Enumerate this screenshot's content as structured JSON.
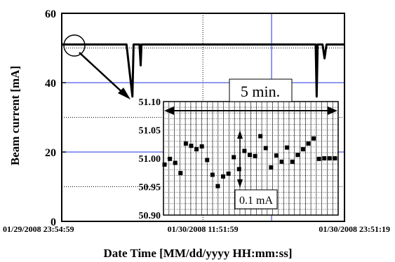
{
  "chart_data": [
    {
      "type": "line",
      "title": "",
      "xlabel": "Date Time [MM/dd/yyyy HH:mm:ss]",
      "ylabel": "Beam current [mA]",
      "ylim": [
        0,
        60
      ],
      "yticks": [
        0,
        20,
        40,
        60
      ],
      "xlim": [
        "01/29/2008 23:54:59",
        "01/30/2008 23:51:19"
      ],
      "xticks": [
        "01/29/2008 23:54:59",
        "01/30/2008 11:51:59",
        "01/30/2008 23:51:19"
      ],
      "grid": true,
      "series": [
        {
          "x": [
            "01/29/2008 23:54:59",
            "01/30/2008 05:24:00",
            "01/30/2008 05:54:00",
            "01/30/2008 06:00:00",
            "01/30/2008 06:05:00",
            "01/30/2008 06:30:00",
            "01/30/2008 06:36:00",
            "01/30/2008 06:40:00",
            "01/30/2008 20:55:00",
            "01/30/2008 21:25:00",
            "01/30/2008 21:30:00",
            "01/30/2008 21:35:00",
            "01/30/2008 22:00:00",
            "01/30/2008 22:10:00",
            "01/30/2008 22:20:00",
            "01/30/2008 23:51:19"
          ],
          "y": [
            51,
            51,
            36,
            51,
            51,
            51,
            45,
            51,
            51,
            51,
            36,
            51,
            51,
            47,
            51,
            51
          ]
        }
      ]
    },
    {
      "type": "scatter",
      "title": "",
      "xlabel": "",
      "ylabel": "",
      "ylim": [
        50.9,
        51.1
      ],
      "yticks": [
        50.9,
        50.95,
        51.0,
        51.05,
        51.1
      ],
      "ytick_labels": [
        "50.90",
        "50.95",
        "51.00",
        "51.05",
        "51.10"
      ],
      "grid": true,
      "series": [
        {
          "x": [
            0.05,
            0.3,
            0.55,
            0.8,
            1.05,
            1.3,
            1.55,
            1.8,
            2.05,
            2.3,
            2.55,
            2.8,
            3.05,
            3.3,
            3.55,
            3.8,
            4.05,
            4.3,
            4.55,
            4.8,
            5.05,
            5.3,
            5.55,
            5.8,
            6.05,
            6.3,
            6.55,
            6.8,
            7.05,
            7.3,
            7.55,
            7.8,
            8.05
          ],
          "y": [
            50.989,
            50.999,
            50.992,
            50.974,
            51.026,
            51.022,
            51.016,
            51.021,
            50.997,
            50.971,
            50.951,
            50.968,
            50.973,
            51.002,
            50.981,
            51.013,
            51.006,
            51.004,
            51.039,
            51.018,
            50.984,
            51.005,
            50.994,
            51.019,
            50.994,
            51.006,
            51.016,
            51.026,
            51.035,
            50.999,
            51.0,
            51.0,
            51.0
          ]
        }
      ],
      "annotations": [
        "5 min.",
        "0.1 mA"
      ]
    }
  ]
}
